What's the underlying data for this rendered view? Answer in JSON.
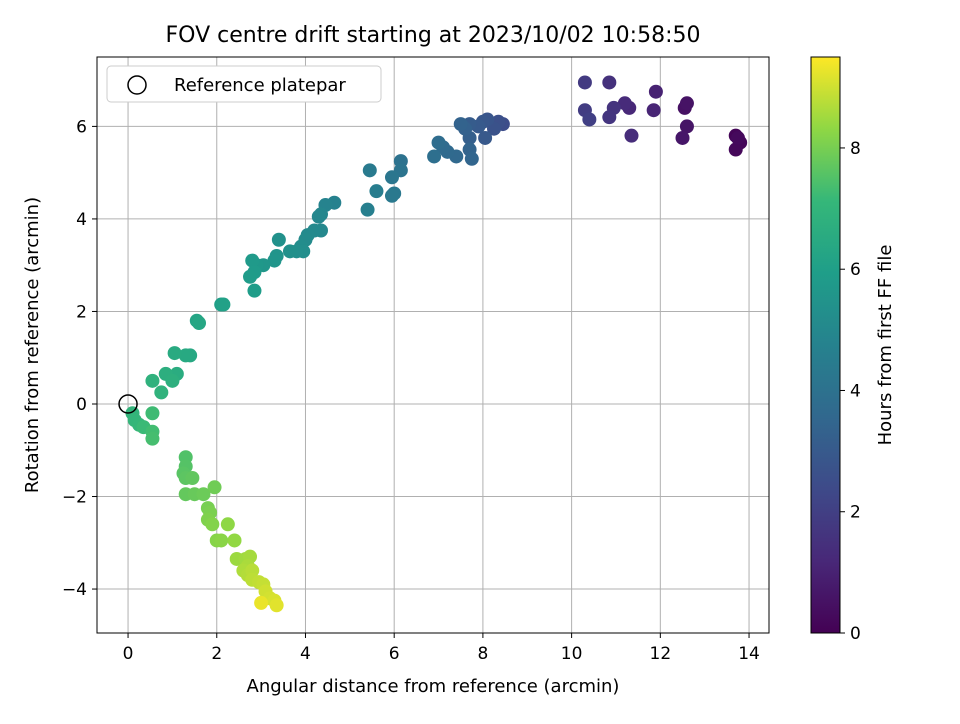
{
  "chart_data": {
    "type": "scatter",
    "title": "FOV centre drift starting at 2023/10/02 10:58:50",
    "xlabel": "Angular distance from reference (arcmin)",
    "ylabel": "Rotation from reference (arcmin)",
    "xlim": [
      -0.7,
      14.45
    ],
    "ylim": [
      -4.95,
      7.5
    ],
    "xticks": [
      0,
      2,
      4,
      6,
      8,
      10,
      12,
      14
    ],
    "xtick_labels": [
      "0",
      "2",
      "4",
      "6",
      "8",
      "10",
      "12",
      "14"
    ],
    "yticks": [
      -4,
      -2,
      0,
      2,
      4,
      6
    ],
    "ytick_labels": [
      "−4",
      "−2",
      "0",
      "2",
      "4",
      "6"
    ],
    "grid": true,
    "legend": {
      "position": "top-left",
      "entries": [
        {
          "label": "Reference platepar",
          "marker": "open-circle"
        }
      ]
    },
    "reference_point": {
      "x": 0,
      "y": 0
    },
    "colorbar": {
      "label": "Hours from first FF file",
      "range": [
        0,
        9.5
      ],
      "ticks": [
        0,
        2,
        4,
        6,
        8
      ],
      "tick_labels": [
        "0",
        "2",
        "4",
        "6",
        "8"
      ],
      "colormap": "viridis"
    },
    "points_columns": [
      "x",
      "y",
      "hours"
    ],
    "points": [
      [
        13.7,
        5.8,
        0.1
      ],
      [
        13.8,
        5.65,
        0.15
      ],
      [
        13.7,
        5.5,
        0.2
      ],
      [
        13.75,
        5.75,
        0.25
      ],
      [
        12.55,
        6.4,
        0.5
      ],
      [
        12.6,
        6.5,
        0.55
      ],
      [
        12.6,
        6.0,
        0.6
      ],
      [
        12.5,
        5.75,
        0.65
      ],
      [
        11.9,
        6.75,
        1.0
      ],
      [
        11.85,
        6.35,
        1.1
      ],
      [
        11.3,
        6.4,
        1.2
      ],
      [
        11.2,
        6.5,
        1.3
      ],
      [
        11.35,
        5.8,
        1.35
      ],
      [
        10.85,
        6.95,
        1.5
      ],
      [
        10.95,
        6.4,
        1.6
      ],
      [
        10.85,
        6.2,
        1.65
      ],
      [
        10.3,
        6.95,
        1.8
      ],
      [
        10.3,
        6.35,
        1.9
      ],
      [
        10.4,
        6.15,
        2.0
      ],
      [
        8.45,
        6.05,
        2.5
      ],
      [
        8.35,
        6.1,
        2.6
      ],
      [
        8.25,
        5.95,
        2.7
      ],
      [
        8.1,
        6.15,
        2.8
      ],
      [
        8.0,
        6.1,
        2.9
      ],
      [
        8.05,
        5.75,
        2.95
      ],
      [
        7.9,
        6.0,
        3.0
      ],
      [
        7.7,
        6.05,
        3.1
      ],
      [
        7.7,
        5.75,
        3.2
      ],
      [
        7.6,
        5.95,
        3.3
      ],
      [
        7.5,
        6.05,
        3.35
      ],
      [
        7.7,
        5.5,
        3.4
      ],
      [
        7.75,
        5.3,
        3.5
      ],
      [
        7.4,
        5.35,
        3.6
      ],
      [
        7.2,
        5.45,
        3.65
      ],
      [
        7.1,
        5.55,
        3.7
      ],
      [
        7.0,
        5.65,
        3.8
      ],
      [
        6.9,
        5.35,
        3.9
      ],
      [
        6.15,
        5.25,
        4.0
      ],
      [
        6.15,
        5.05,
        4.1
      ],
      [
        5.95,
        4.9,
        4.2
      ],
      [
        6.0,
        4.55,
        4.3
      ],
      [
        5.95,
        4.5,
        4.35
      ],
      [
        5.45,
        5.05,
        4.4
      ],
      [
        5.6,
        4.6,
        4.5
      ],
      [
        5.4,
        4.2,
        4.6
      ],
      [
        4.65,
        4.35,
        4.7
      ],
      [
        4.45,
        4.3,
        4.8
      ],
      [
        4.35,
        4.1,
        4.9
      ],
      [
        4.3,
        4.05,
        4.95
      ],
      [
        4.35,
        3.75,
        5.0
      ],
      [
        4.2,
        3.75,
        5.05
      ],
      [
        4.05,
        3.65,
        5.1
      ],
      [
        4.0,
        3.55,
        5.15
      ],
      [
        3.9,
        3.4,
        5.2
      ],
      [
        3.95,
        3.3,
        5.25
      ],
      [
        3.8,
        3.3,
        5.3
      ],
      [
        3.65,
        3.3,
        5.35
      ],
      [
        3.4,
        3.55,
        5.4
      ],
      [
        3.35,
        3.2,
        5.5
      ],
      [
        3.3,
        3.1,
        5.55
      ],
      [
        3.05,
        3.0,
        5.6
      ],
      [
        2.9,
        3.0,
        5.7
      ],
      [
        2.8,
        3.1,
        5.75
      ],
      [
        2.85,
        2.85,
        5.8
      ],
      [
        2.75,
        2.75,
        5.85
      ],
      [
        2.85,
        2.45,
        5.9
      ],
      [
        2.1,
        2.15,
        6.0
      ],
      [
        2.15,
        2.15,
        6.1
      ],
      [
        1.55,
        1.8,
        6.2
      ],
      [
        1.6,
        1.75,
        6.3
      ],
      [
        1.4,
        1.05,
        6.4
      ],
      [
        1.3,
        1.05,
        6.45
      ],
      [
        1.05,
        1.1,
        6.5
      ],
      [
        1.1,
        0.65,
        6.6
      ],
      [
        0.85,
        0.65,
        6.7
      ],
      [
        1.0,
        0.5,
        6.75
      ],
      [
        0.55,
        0.5,
        6.85
      ],
      [
        0.75,
        0.25,
        6.9
      ],
      [
        0.1,
        -0.2,
        7.0
      ],
      [
        0.15,
        -0.35,
        7.05
      ],
      [
        0.25,
        -0.45,
        7.1
      ],
      [
        0.35,
        -0.5,
        7.2
      ],
      [
        0.55,
        -0.2,
        7.25
      ],
      [
        0.55,
        -0.6,
        7.3
      ],
      [
        0.55,
        -0.75,
        7.35
      ],
      [
        1.3,
        -1.15,
        7.5
      ],
      [
        1.3,
        -1.35,
        7.55
      ],
      [
        1.25,
        -1.5,
        7.6
      ],
      [
        1.3,
        -1.6,
        7.65
      ],
      [
        1.45,
        -1.6,
        7.7
      ],
      [
        1.3,
        -1.95,
        7.75
      ],
      [
        1.5,
        -1.95,
        7.8
      ],
      [
        1.7,
        -1.95,
        7.85
      ],
      [
        1.95,
        -1.8,
        7.9
      ],
      [
        1.8,
        -2.25,
        8.0
      ],
      [
        1.85,
        -2.35,
        8.05
      ],
      [
        1.8,
        -2.5,
        8.1
      ],
      [
        1.9,
        -2.6,
        8.15
      ],
      [
        2.0,
        -2.95,
        8.2
      ],
      [
        2.1,
        -2.95,
        8.25
      ],
      [
        2.25,
        -2.6,
        8.3
      ],
      [
        2.4,
        -2.95,
        8.35
      ],
      [
        2.45,
        -3.35,
        8.45
      ],
      [
        2.65,
        -3.35,
        8.5
      ],
      [
        2.75,
        -3.3,
        8.55
      ],
      [
        2.7,
        -3.5,
        8.6
      ],
      [
        2.6,
        -3.6,
        8.65
      ],
      [
        2.7,
        -3.7,
        8.7
      ],
      [
        2.8,
        -3.6,
        8.75
      ],
      [
        2.8,
        -3.8,
        8.8
      ],
      [
        2.95,
        -3.85,
        8.85
      ],
      [
        3.05,
        -3.9,
        8.9
      ],
      [
        3.1,
        -4.05,
        9.0
      ],
      [
        3.2,
        -4.2,
        9.05
      ],
      [
        3.3,
        -4.25,
        9.1
      ],
      [
        3.35,
        -4.35,
        9.2
      ],
      [
        3.0,
        -4.3,
        9.3
      ]
    ]
  }
}
